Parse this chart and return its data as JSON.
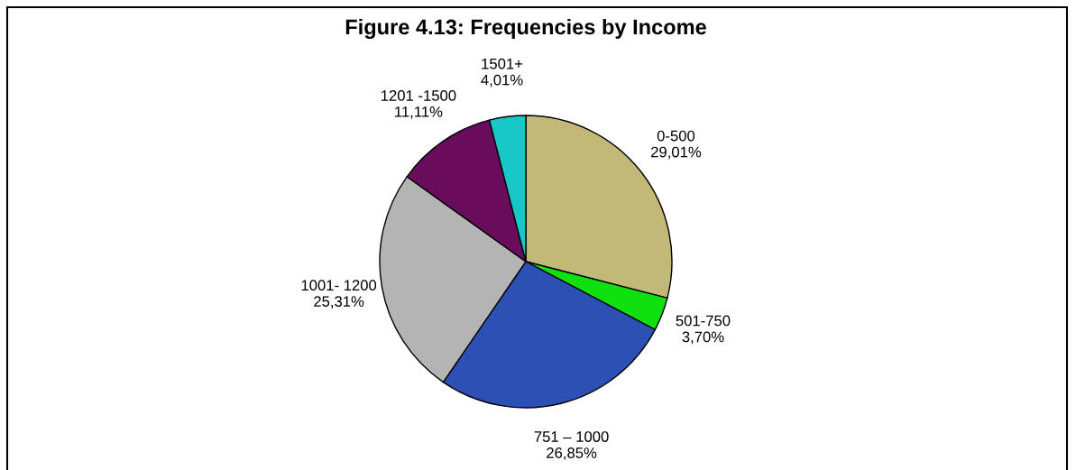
{
  "chart_data": {
    "type": "pie",
    "title": "Figure 4.13: Frequencies by Income",
    "categories": [
      "0-500",
      "501-750",
      "751 – 1000",
      "1001- 1200",
      "1201 -1500",
      "1501+"
    ],
    "values": [
      29.01,
      3.7,
      26.85,
      25.31,
      11.11,
      4.01
    ],
    "value_labels": [
      "29,01%",
      "3,70%",
      "26,85%",
      "25,31%",
      "11,11%",
      "4,01%"
    ],
    "colors": [
      "#c2b978",
      "#10e010",
      "#2c50b4",
      "#b4b4b4",
      "#6a0c5c",
      "#18c8c8"
    ],
    "legend": false
  }
}
